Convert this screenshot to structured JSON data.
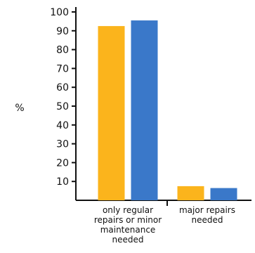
{
  "chart_data": {
    "type": "bar",
    "ylabel": "%",
    "xlabel": "",
    "ylim": [
      0,
      100
    ],
    "y_ticks": [
      10,
      20,
      30,
      40,
      50,
      60,
      70,
      80,
      90,
      100
    ],
    "categories": [
      [
        "only regular",
        "repairs or minor",
        "maintenance",
        "needed"
      ],
      [
        "major repairs",
        "needed"
      ]
    ],
    "series": [
      {
        "color": "#FBB41C",
        "values": [
          92.5,
          7.5
        ]
      },
      {
        "color": "#3A78C9",
        "values": [
          95.5,
          6.5
        ]
      }
    ],
    "grid": false,
    "legend": "none"
  }
}
